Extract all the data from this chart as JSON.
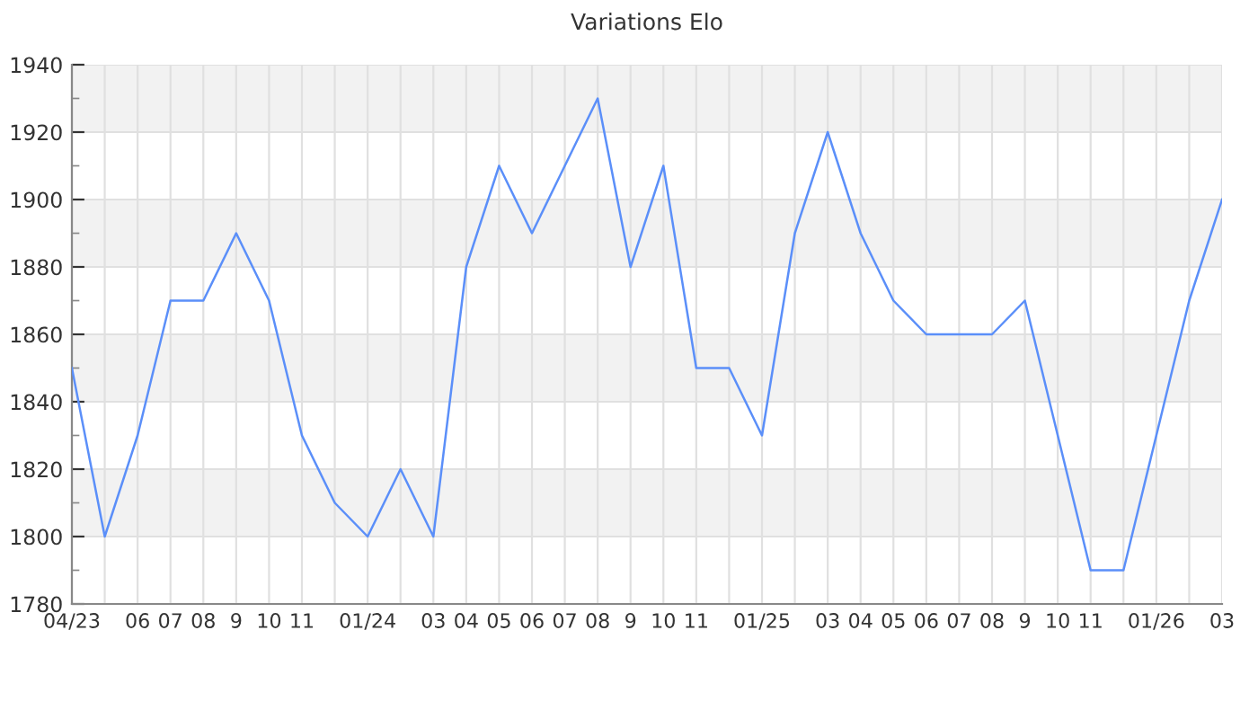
{
  "chart_data": {
    "type": "line",
    "title": "Variations Elo",
    "categories": [
      "04/23",
      null,
      "06",
      "07",
      "08",
      "9",
      "10",
      "11",
      null,
      "01/24",
      null,
      "03",
      "04",
      "05",
      "06",
      "07",
      "08",
      "9",
      "10",
      "11",
      null,
      "01/25",
      null,
      "03",
      "04",
      "05",
      "06",
      "07",
      "08",
      "9",
      "10",
      "11",
      null,
      "01/26",
      null,
      "03"
    ],
    "series": [
      {
        "color": "#5b8ff9",
        "values": [
          1850,
          1800,
          1830,
          1870,
          1870,
          1890,
          1870,
          1830,
          1810,
          1800,
          1820,
          1800,
          1880,
          1910,
          1890,
          1910,
          1930,
          1880,
          1910,
          1850,
          1850,
          1830,
          1890,
          1920,
          1890,
          1870,
          1860,
          1860,
          1860,
          1870,
          1830,
          1790,
          1790,
          1830,
          1870,
          1900
        ]
      }
    ],
    "ylim": [
      1780,
      1940
    ],
    "yticks": [
      1780,
      {
        "value": 1790,
        "label": null
      },
      1800,
      {
        "value": 1810,
        "label": null
      },
      1820,
      {
        "value": 1830,
        "label": null
      },
      1840,
      {
        "value": 1850,
        "label": null
      },
      1860,
      {
        "value": 1870,
        "label": null
      },
      1880,
      {
        "value": 1890,
        "label": null
      },
      1900,
      {
        "value": 1910,
        "label": null
      },
      1920,
      {
        "value": 1930,
        "label": null
      },
      1940
    ],
    "bands": [
      {
        "axis": "y",
        "from": 1800,
        "to": 1820,
        "color": "#f2f2f2"
      },
      {
        "axis": "y",
        "from": 1840,
        "to": 1860,
        "color": "#f2f2f2"
      },
      {
        "axis": "y",
        "from": 1880,
        "to": 1900,
        "color": "#f2f2f2"
      },
      {
        "axis": "y",
        "from": 1920,
        "to": 1940,
        "color": "#f2f2f2"
      }
    ],
    "grid": true,
    "marker": "none",
    "line_style": "solid",
    "legend": false
  }
}
